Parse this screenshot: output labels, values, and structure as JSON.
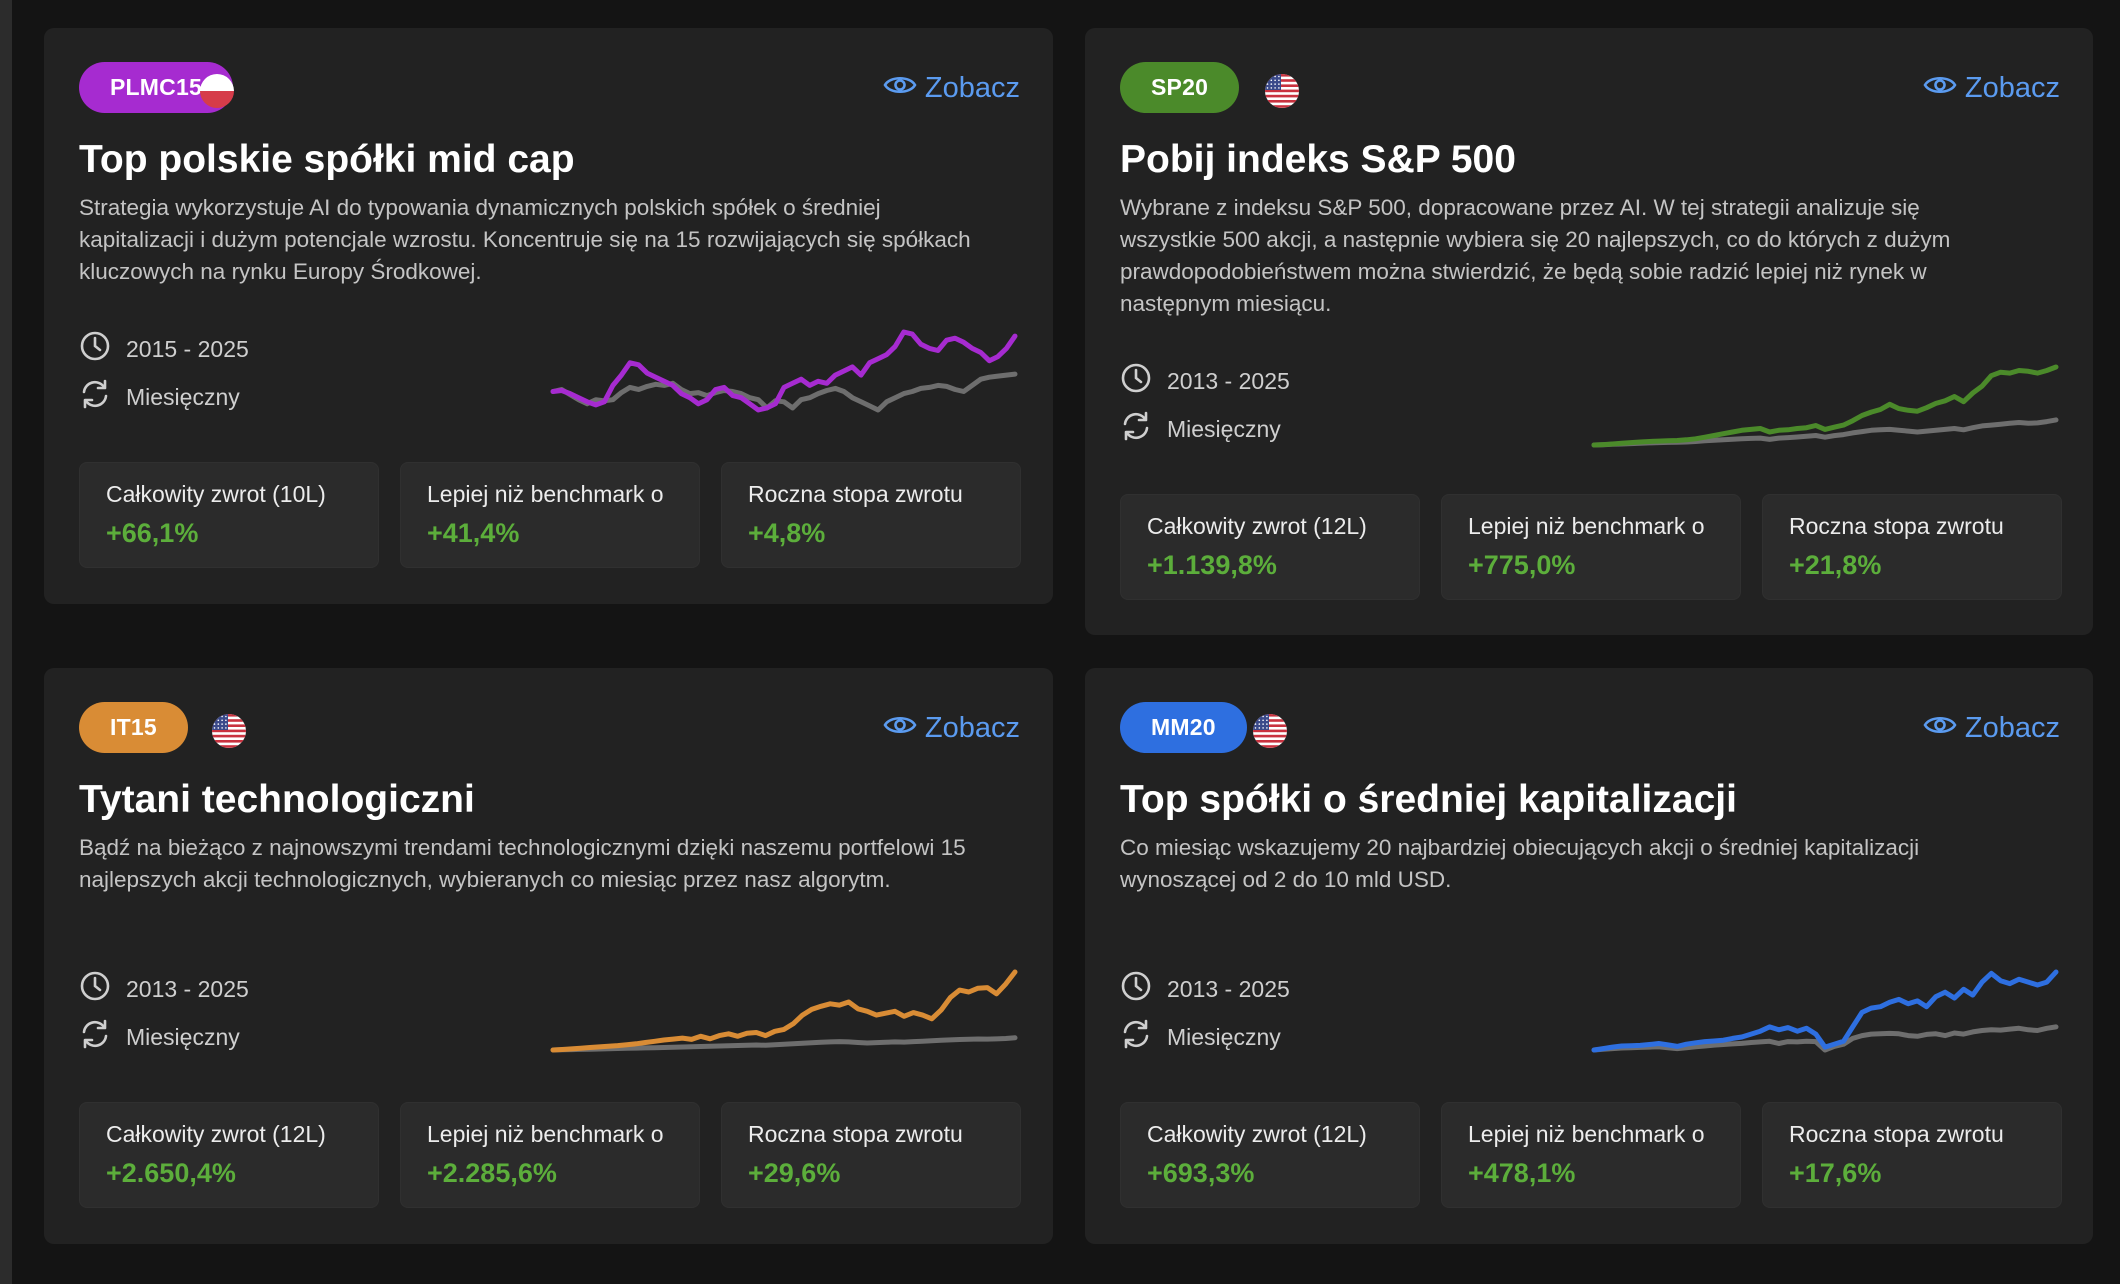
{
  "view_label": "Zobacz",
  "colors": {
    "benchmark": "#6e6e6e",
    "positive": "#5cae3b",
    "link": "#5b9bf0"
  },
  "strategies": [
    {
      "badge": "PLMC15",
      "badge_color": "#a62bd0",
      "flag": "poland",
      "title": "Top polskie spółki mid cap",
      "description": "Strategia wykorzystuje AI do typowania dynamicznych polskich spółek o średniej kapitalizacji i dużym potencjale wzrostu. Koncentruje się na 15 rozwijających się spółkach kluczowych na rynku Europy Środkowej.",
      "period": "2015 - 2025",
      "frequency": "Miesięczny",
      "stats": [
        {
          "label": "Całkowity zwrot (10L)",
          "value": "+66,1%"
        },
        {
          "label": "Lepiej niż benchmark o",
          "value": "+41,4%"
        },
        {
          "label": "Roczna stopa zwrotu",
          "value": "+4,8%"
        }
      ],
      "chart_data": {
        "type": "line",
        "series": [
          {
            "name": "strategy",
            "color": "#a62bd0",
            "values": [
              0,
              0.5,
              -1,
              -3,
              -5,
              -6.5,
              -5,
              3,
              8,
              14,
              13,
              9,
              7,
              5,
              3,
              -1,
              -3,
              -6,
              -4,
              1,
              2,
              -2,
              -3,
              -6,
              -9,
              -8,
              -6,
              2,
              4,
              6,
              3,
              5,
              4,
              8,
              10,
              12,
              8,
              14,
              16,
              18,
              22,
              29,
              28,
              23,
              21,
              20,
              25,
              26,
              24,
              21,
              19,
              15,
              17,
              21,
              27
            ]
          },
          {
            "name": "benchmark",
            "color": "#6e6e6e",
            "values": [
              0,
              1,
              -1.5,
              -4,
              -6,
              -4,
              -4.5,
              -4,
              -0.5,
              2,
              1,
              2.5,
              3.5,
              3,
              4,
              1,
              -1,
              -0.5,
              -2,
              -0.5,
              0.5,
              0,
              -1,
              -3,
              -4,
              -8,
              -4.5,
              -5,
              -8,
              -4,
              -3,
              -1,
              0.5,
              1.5,
              0,
              -3,
              -5,
              -7,
              -9,
              -5,
              -3,
              -1,
              0,
              1.5,
              2,
              3,
              2.5,
              1,
              0,
              3,
              6,
              7,
              7.5,
              8,
              8.5
            ]
          }
        ]
      }
    },
    {
      "badge": "SP20",
      "badge_color": "#4b8a2a",
      "flag": "usa",
      "title": "Pobij indeks S&P 500",
      "description": "Wybrane z indeksu S&P 500, dopracowane przez AI. W tej strategii analizuje się wszystkie 500 akcji, a następnie wybiera się 20 najlepszych, co do których z dużym prawdopodobieństwem można stwierdzić, że będą sobie radzić lepiej niż rynek w następnym miesiącu.",
      "period": "2013 - 2025",
      "frequency": "Miesięczny",
      "stats": [
        {
          "label": "Całkowity zwrot (12L)",
          "value": "+1.139,8%"
        },
        {
          "label": "Lepiej niż benchmark o",
          "value": "+775,0%"
        },
        {
          "label": "Roczna stopa zwrotu",
          "value": "+21,8%"
        }
      ],
      "chart_data": {
        "type": "line",
        "series": [
          {
            "name": "strategy",
            "color": "#4b8a2a",
            "values": [
              0,
              5,
              12,
              20,
              28,
              35,
              40,
              45,
              48,
              52,
              60,
              72,
              90,
              110,
              130,
              150,
              170,
              180,
              190,
              150,
              170,
              175,
              190,
              200,
              225,
              180,
              205,
              230,
              280,
              340,
              380,
              410,
              470,
              420,
              400,
              390,
              430,
              480,
              510,
              560,
              500,
              600,
              680,
              800,
              840,
              830,
              860,
              850,
              830,
              860,
              900
            ]
          },
          {
            "name": "benchmark",
            "color": "#6e6e6e",
            "values": [
              0,
              3,
              8,
              12,
              16,
              20,
              24,
              28,
              30,
              32,
              35,
              40,
              48,
              55,
              60,
              66,
              72,
              76,
              80,
              65,
              80,
              85,
              92,
              100,
              110,
              90,
              108,
              120,
              140,
              155,
              170,
              175,
              180,
              170,
              160,
              150,
              160,
              170,
              180,
              190,
              175,
              200,
              220,
              230,
              240,
              250,
              260,
              250,
              255,
              270,
              290
            ]
          }
        ]
      }
    },
    {
      "badge": "IT15",
      "badge_color": "#d98c35",
      "flag": "usa",
      "title": "Tytani technologiczni",
      "description": "Bądź na bieżąco z najnowszymi trendami technologicznymi dzięki naszemu portfelowi 15 najlepszych akcji technologicznych, wybieranych co miesiąc przez nasz algorytm.",
      "period": "2013 - 2025",
      "frequency": "Miesięczny",
      "stats": [
        {
          "label": "Całkowity zwrot (12L)",
          "value": "+2.650,4%"
        },
        {
          "label": "Lepiej niż benchmark o",
          "value": "+2.285,6%"
        },
        {
          "label": "Roczna stopa zwrotu",
          "value": "+29,6%"
        }
      ],
      "chart_data": {
        "type": "line",
        "series": [
          {
            "name": "strategy",
            "color": "#d98c35",
            "values": [
              0,
              8,
              18,
              28,
              40,
              50,
              60,
              70,
              85,
              100,
              120,
              140,
              160,
              175,
              190,
              170,
              220,
              180,
              230,
              260,
              220,
              270,
              280,
              230,
              300,
              330,
              420,
              560,
              650,
              700,
              740,
              720,
              770,
              660,
              620,
              560,
              590,
              620,
              540,
              600,
              560,
              500,
              640,
              840,
              960,
              930,
              990,
              1000,
              900,
              1060,
              1250
            ]
          },
          {
            "name": "benchmark",
            "color": "#6e6e6e",
            "values": [
              0,
              3,
              6,
              10,
              13,
              16,
              20,
              24,
              27,
              30,
              33,
              36,
              40,
              44,
              48,
              52,
              56,
              60,
              64,
              68,
              72,
              76,
              80,
              75,
              85,
              92,
              100,
              108,
              116,
              124,
              130,
              134,
              130,
              120,
              112,
              118,
              124,
              130,
              126,
              134,
              140,
              148,
              156,
              162,
              168,
              172,
              176,
              174,
              178,
              185,
              195
            ]
          }
        ]
      }
    },
    {
      "badge": "MM20",
      "badge_color": "#2e6fe0",
      "flag": "usa",
      "title": "Top spółki o średniej kapitalizacji",
      "description": "Co miesiąc wskazujemy 20 najbardziej obiecujących akcji o średniej kapitalizacji wynoszącej od 2 do 10 mld USD.",
      "period": "2013 - 2025",
      "frequency": "Miesięczny",
      "stats": [
        {
          "label": "Całkowity zwrot (12L)",
          "value": "+693,3%"
        },
        {
          "label": "Lepiej niż benchmark o",
          "value": "+478,1%"
        },
        {
          "label": "Roczna stopa zwrotu",
          "value": "+17,6%"
        }
      ],
      "chart_data": {
        "type": "line",
        "series": [
          {
            "name": "strategy",
            "color": "#2e6fe0",
            "values": [
              0,
              10,
              20,
              28,
              30,
              32,
              38,
              45,
              35,
              25,
              40,
              50,
              58,
              62,
              68,
              80,
              90,
              110,
              130,
              160,
              140,
              155,
              130,
              150,
              110,
              20,
              40,
              60,
              160,
              260,
              290,
              300,
              330,
              350,
              320,
              340,
              300,
              370,
              400,
              360,
              420,
              380,
              470,
              530,
              480,
              460,
              490,
              470,
              450,
              470,
              540
            ]
          },
          {
            "name": "benchmark",
            "color": "#6e6e6e",
            "values": [
              0,
              5,
              10,
              14,
              16,
              18,
              20,
              22,
              16,
              10,
              16,
              22,
              28,
              34,
              38,
              42,
              46,
              52,
              56,
              60,
              45,
              58,
              56,
              60,
              58,
              0,
              25,
              40,
              80,
              100,
              110,
              112,
              115,
              112,
              100,
              95,
              108,
              112,
              100,
              118,
              110,
              125,
              135,
              140,
              138,
              145,
              150,
              140,
              135,
              150,
              160
            ]
          }
        ]
      }
    }
  ]
}
